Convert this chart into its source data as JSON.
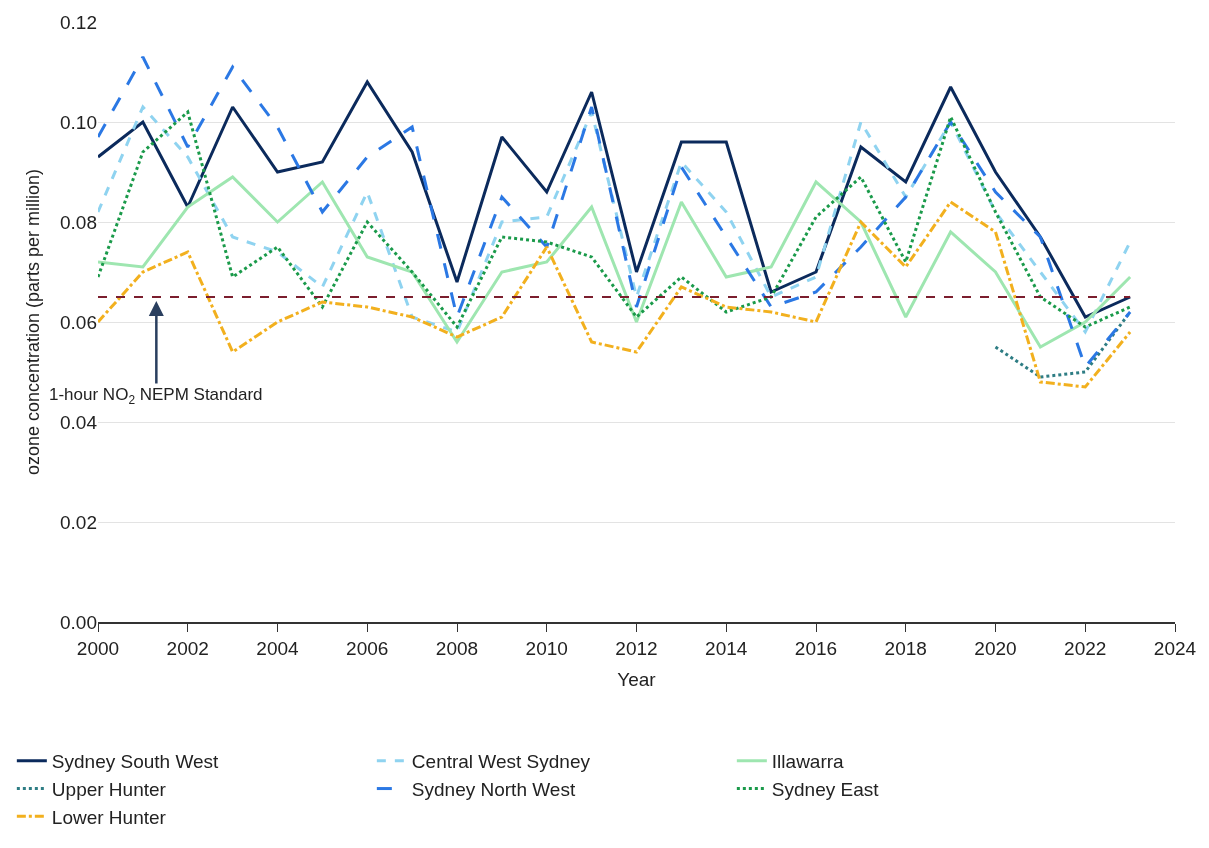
{
  "chart_data": {
    "type": "line",
    "xlabel": "Year",
    "ylabel": "ozone concentration (parts per million)",
    "x": [
      2000,
      2001,
      2002,
      2003,
      2004,
      2005,
      2006,
      2007,
      2008,
      2009,
      2010,
      2011,
      2012,
      2013,
      2014,
      2015,
      2016,
      2017,
      2018,
      2019,
      2020,
      2021,
      2022,
      2023
    ],
    "series": [
      {
        "name": "Sydney South West",
        "color": "#0b2a5c",
        "line_style": "solid",
        "values": [
          0.093,
          0.1,
          0.083,
          0.103,
          0.09,
          0.092,
          0.108,
          0.094,
          0.068,
          0.097,
          0.086,
          0.106,
          0.07,
          0.096,
          0.096,
          0.066,
          0.07,
          0.095,
          0.088,
          0.107,
          0.09,
          0.077,
          0.061,
          0.065
        ]
      },
      {
        "name": "Central West Sydney",
        "color": "#8fd3f0",
        "line_style": "dashed",
        "values": [
          0.082,
          0.103,
          0.093,
          0.077,
          0.074,
          0.067,
          0.086,
          0.061,
          0.058,
          0.08,
          0.081,
          0.102,
          0.065,
          0.092,
          0.082,
          0.065,
          0.069,
          0.1,
          0.085,
          0.1,
          0.082,
          0.07,
          0.058,
          0.076
        ]
      },
      {
        "name": "Illawarra",
        "color": "#9ee6b0",
        "line_style": "solid",
        "values": [
          0.072,
          0.071,
          0.083,
          0.089,
          0.08,
          0.088,
          0.073,
          0.07,
          0.056,
          0.07,
          0.072,
          0.083,
          0.06,
          0.084,
          0.069,
          0.071,
          0.088,
          0.08,
          0.061,
          0.078,
          0.07,
          0.055,
          0.06,
          0.069
        ]
      },
      {
        "name": "Upper Hunter",
        "color": "#2e7d84",
        "line_style": "dotted",
        "x": [
          2020,
          2021,
          2022,
          2023
        ],
        "values": [
          0.055,
          0.049,
          0.05,
          0.062
        ]
      },
      {
        "name": "Sydney North West",
        "color": "#2b78e4",
        "line_style": "longdash",
        "values": [
          0.097,
          0.113,
          0.095,
          0.111,
          0.099,
          0.082,
          0.093,
          0.099,
          0.061,
          0.085,
          0.075,
          0.103,
          0.063,
          0.091,
          0.077,
          0.063,
          0.066,
          0.075,
          0.085,
          0.1,
          0.086,
          0.077,
          0.051,
          0.062
        ]
      },
      {
        "name": "Sydney East",
        "color": "#1a9a4a",
        "line_style": "dotted",
        "values": [
          0.069,
          0.094,
          0.102,
          0.069,
          0.075,
          0.063,
          0.08,
          0.07,
          0.059,
          0.077,
          0.076,
          0.073,
          0.061,
          0.069,
          0.062,
          0.065,
          0.081,
          0.089,
          0.072,
          0.101,
          0.082,
          0.065,
          0.059,
          0.063
        ]
      },
      {
        "name": "Lower Hunter",
        "color": "#f2b01e",
        "line_style": "dashdot",
        "values": [
          0.06,
          0.07,
          0.074,
          0.054,
          0.06,
          0.064,
          0.063,
          0.061,
          0.057,
          0.061,
          0.075,
          0.056,
          0.054,
          0.067,
          0.063,
          0.062,
          0.06,
          0.08,
          0.071,
          0.084,
          0.078,
          0.048,
          0.047,
          0.058
        ]
      }
    ],
    "ref_lines": [
      {
        "axis": "y",
        "value": 0.065,
        "color": "#7b1e2e",
        "line_style": "dashed"
      }
    ],
    "annotations": [
      {
        "text": "1-hour NO$_{2}$ NEPM Standard",
        "x": 2001.3,
        "y": 0.065
      }
    ],
    "xlim": [
      2000,
      2024
    ],
    "xticks": [
      2000,
      2002,
      2004,
      2006,
      2008,
      2010,
      2012,
      2014,
      2016,
      2018,
      2020,
      2022,
      2024
    ],
    "ylim": [
      0,
      0.12
    ],
    "yticks": [
      {
        "value": 0,
        "label": "0.00"
      },
      {
        "value": 0.02,
        "label": "0.02"
      },
      {
        "value": 0.04,
        "label": "0.04"
      },
      {
        "value": 0.06,
        "label": "0.06"
      },
      {
        "value": 0.08,
        "label": "0.08"
      },
      {
        "value": 0.1,
        "label": "0.10"
      },
      {
        "value": 0.12,
        "label": "0.12"
      }
    ],
    "grid": "y",
    "legend": "bottom"
  }
}
